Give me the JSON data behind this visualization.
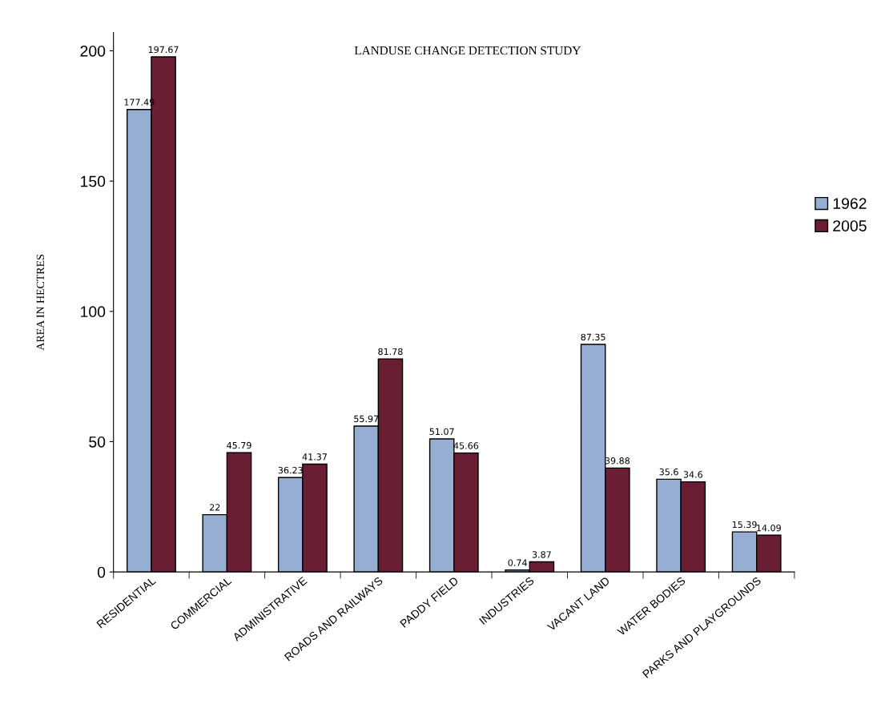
{
  "chart_data": {
    "type": "bar",
    "title": "LANDUSE CHANGE DETECTION STUDY",
    "ylabel": "AREA IN HECTRES",
    "categories": [
      "RESIDENTIAL",
      "COMMERCIAL",
      "ADMINISTRATIVE",
      "ROADS AND RAILWAYS",
      "PADDY FIELD",
      "INDUSTRIES",
      "VACANT LAND",
      "WATER BODIES",
      "PARKS AND PLAYGROUNDS"
    ],
    "series": [
      {
        "name": "1962",
        "color": "#95aed2",
        "values": [
          177.49,
          22,
          36.23,
          55.97,
          51.07,
          0.74,
          87.35,
          35.6,
          15.39
        ]
      },
      {
        "name": "2005",
        "color": "#6a1e34",
        "values": [
          197.67,
          45.79,
          41.37,
          81.78,
          45.66,
          3.87,
          39.88,
          34.6,
          14.09
        ]
      }
    ],
    "ylim": [
      0,
      207
    ],
    "yticks": [
      0,
      50,
      100,
      150,
      200
    ],
    "data_labels": true,
    "legend": "right",
    "grid": false
  }
}
